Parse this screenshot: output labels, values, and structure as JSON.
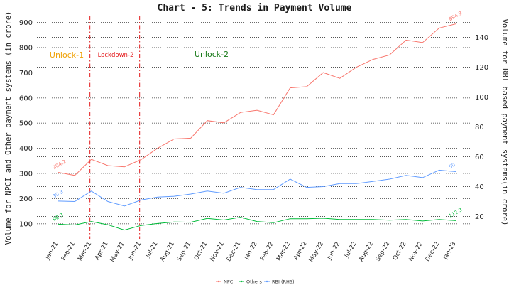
{
  "chart_data": {
    "type": "line",
    "title": "Chart - 5: Trends in Payment Volume",
    "ylabel_left": "Volume for NPCI and Other payment systems (in crore)",
    "ylabel_right": "Volume for RBI based payment systems(in crore)",
    "ylim_left": [
      40,
      930
    ],
    "ylim_right": [
      5,
      155
    ],
    "yticks_left": [
      100,
      200,
      300,
      400,
      500,
      600,
      700,
      800,
      900
    ],
    "yticks_right": [
      20,
      40,
      60,
      80,
      100,
      120,
      140
    ],
    "grid": "horizontal-dotted",
    "legend_position": "bottom",
    "categories": [
      "Jan-21",
      "Feb-21",
      "Mar-21",
      "Apr-21",
      "May-21",
      "Jun-21",
      "Jul-21",
      "Aug-21",
      "Sep-21",
      "Oct-21",
      "Nov-21",
      "Dec-21",
      "Jan-22",
      "Feb-22",
      "Mar-22",
      "Apr-22",
      "May-22",
      "Jun-22",
      "Jul-22",
      "Aug-22",
      "Sep-22",
      "Oct-22",
      "Nov-22",
      "Dec-22",
      "Jan-23"
    ],
    "series": [
      {
        "name": "NPCI",
        "axis": "left",
        "color": "#f8766d",
        "values": [
          304.2,
          292,
          356,
          331,
          326,
          355,
          400,
          437,
          440,
          510,
          501,
          542,
          551,
          533,
          640,
          645,
          701,
          678,
          722,
          753,
          771,
          830,
          820,
          878,
          894.3
        ]
      },
      {
        "name": "Others",
        "axis": "left",
        "color": "#00ba38",
        "values": [
          98.3,
          95,
          109,
          96,
          75,
          93,
          101,
          107,
          106,
          121,
          115,
          126,
          109,
          104,
          120,
          120,
          122,
          117,
          117,
          117,
          114,
          117,
          111,
          117,
          112.3
        ]
      },
      {
        "name": "RBI (RHS)",
        "axis": "right",
        "color": "#619cff",
        "values": [
          30.3,
          30,
          37,
          30,
          27,
          31,
          33,
          33.5,
          35,
          37,
          35.5,
          39.5,
          38,
          38,
          45,
          39.5,
          40,
          42,
          42,
          43.5,
          45,
          47.5,
          46,
          51,
          50
        ]
      }
    ],
    "data_labels": [
      {
        "series": "NPCI",
        "index": 0,
        "text": "304.2"
      },
      {
        "series": "NPCI",
        "index": 24,
        "text": "894.3"
      },
      {
        "series": "Others",
        "index": 0,
        "text": "98.3"
      },
      {
        "series": "Others",
        "index": 24,
        "text": "112.3"
      },
      {
        "series": "RBI (RHS)",
        "index": 0,
        "text": "30.3"
      },
      {
        "series": "RBI (RHS)",
        "index": 24,
        "text": "50"
      }
    ],
    "phase_markers": [
      {
        "at_index": 2,
        "style": "dash-dot",
        "color": "#e41a1c"
      },
      {
        "at_index": 5,
        "style": "dash-dot",
        "color": "#e41a1c"
      }
    ],
    "phase_labels": [
      {
        "text": "Unlock-1",
        "color": "#f0a30a"
      },
      {
        "text": "Lockdown-2",
        "color": "#e41a1c"
      },
      {
        "text": "Unlock-2",
        "color": "#1a7a1a"
      }
    ]
  }
}
